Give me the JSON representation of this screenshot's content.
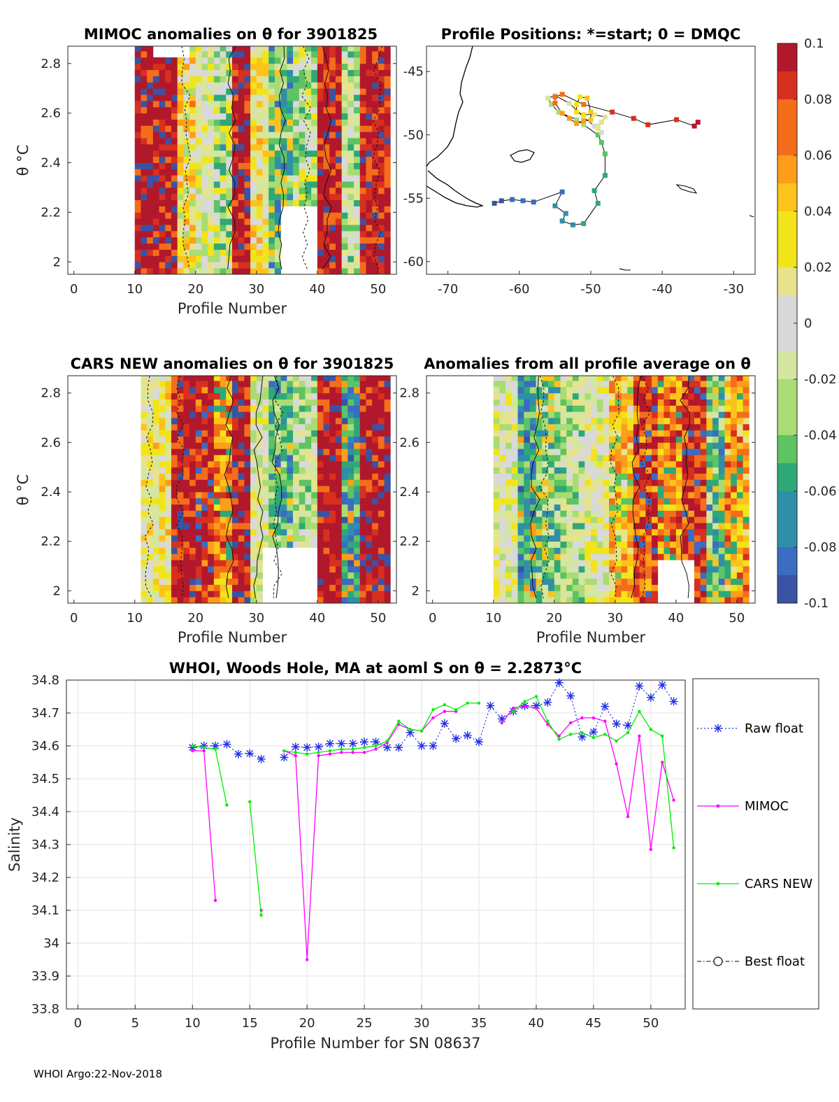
{
  "footer": "WHOI Argo:22-Nov-2018",
  "colorbar": {
    "ticks": [
      "0.1",
      "0.08",
      "0.06",
      "0.04",
      "0.02",
      "0",
      "-0.02",
      "-0.04",
      "-0.06",
      "-0.08",
      "-0.1"
    ],
    "colors": [
      "#b2182b",
      "#d7301f",
      "#f46d1b",
      "#fd9d1a",
      "#fdc31a",
      "#f2e41a",
      "#e6e38c",
      "#d9d9d9",
      "#d4e6a0",
      "#a9dc74",
      "#5dc363",
      "#2fa878",
      "#2f8fa8",
      "#3a6cc2",
      "#3a53a4"
    ]
  },
  "chart_data": [
    {
      "id": "mimoc",
      "type": "heatmap",
      "title": "MIMOC anomalies on θ  for 3901825",
      "xlabel": "Profile Number",
      "ylabel": "θ °C",
      "xlim": [
        -1,
        53
      ],
      "ylim": [
        1.95,
        2.87
      ],
      "xticks": [
        "0",
        "10",
        "20",
        "30",
        "40",
        "50"
      ],
      "yticks": [
        "2.8",
        "2.6",
        "2.4",
        "2.2",
        "2"
      ],
      "profile_range": [
        10,
        52
      ],
      "bands": [
        {
          "from": 10,
          "to": 13,
          "anomaly": 0.1
        },
        {
          "from": 13,
          "to": 17,
          "anomaly": 0.1
        },
        {
          "from": 17,
          "to": 20,
          "anomaly": 0.03
        },
        {
          "from": 20,
          "to": 23,
          "anomaly": 0.0
        },
        {
          "from": 23,
          "to": 26,
          "anomaly": -0.03
        },
        {
          "from": 26,
          "to": 29,
          "anomaly": 0.1
        },
        {
          "from": 29,
          "to": 32,
          "anomaly": 0.02
        },
        {
          "from": 32,
          "to": 36,
          "anomaly": -0.05
        },
        {
          "from": 36,
          "to": 40,
          "anomaly": -0.03
        },
        {
          "from": 40,
          "to": 44,
          "anomaly": 0.1
        },
        {
          "from": 44,
          "to": 47,
          "anomaly": -0.02
        },
        {
          "from": 47,
          "to": 52,
          "anomaly": 0.1
        }
      ]
    },
    {
      "id": "positions",
      "type": "scatter",
      "title": "Profile Positions: *=start; 0 = DMQC",
      "xlim": [
        -73,
        -27
      ],
      "ylim": [
        -61,
        -43
      ],
      "xticks": [
        "-70",
        "-60",
        "-50",
        "-40",
        "-30"
      ],
      "yticks": [
        "-45",
        "-50",
        "-55",
        "-60"
      ],
      "lon": [
        -63.5,
        -62.5,
        -61,
        -59.5,
        -58,
        -54,
        -55,
        -53.5,
        -54,
        -52.5,
        -51,
        -49,
        -49.5,
        -48,
        -48,
        -48.5,
        -49,
        -51,
        -52,
        -54.5,
        -55.5,
        -56,
        -55,
        -53,
        -51,
        -49.5,
        -48.5,
        -49,
        -49,
        -48.5,
        -48,
        -49.5,
        -51,
        -52,
        -52,
        -51.5,
        -50.5,
        -50,
        -50,
        -51,
        -52,
        -53,
        -54,
        -55,
        -55,
        -54,
        -51,
        -47,
        -44,
        -42,
        -38,
        -35.5,
        -35
      ],
      "lat": [
        -55.4,
        -55.2,
        -55.1,
        -55.2,
        -55.3,
        -54.5,
        -55.6,
        -56.2,
        -56.8,
        -57.1,
        -57.0,
        -55.4,
        -54.4,
        -53.2,
        -51.5,
        -50.6,
        -50.0,
        -49.2,
        -48.8,
        -48.2,
        -47.6,
        -47.1,
        -46.9,
        -47.5,
        -48.6,
        -49.3,
        -49.8,
        -49.3,
        -49.5,
        -49.0,
        -48.6,
        -48.4,
        -48.4,
        -48.2,
        -47.6,
        -47.0,
        -47.1,
        -48.2,
        -48.8,
        -48.9,
        -49.1,
        -48.7,
        -48.3,
        -47.5,
        -47.0,
        -46.8,
        -47.6,
        -48.2,
        -48.7,
        -49.2,
        -48.8,
        -49.3,
        -49.0
      ]
    },
    {
      "id": "cars",
      "type": "heatmap",
      "title": "CARS NEW anomalies on θ for 3901825",
      "xlabel": "Profile Number",
      "ylabel": "θ °C",
      "xlim": [
        -1,
        53
      ],
      "ylim": [
        1.95,
        2.87
      ],
      "xticks": [
        "0",
        "10",
        "20",
        "30",
        "40",
        "50"
      ],
      "yticks": [
        "2.8",
        "2.6",
        "2.4",
        "2.2",
        "2"
      ],
      "profile_range": [
        11,
        52
      ],
      "bands": [
        {
          "from": 11,
          "to": 13,
          "anomaly": 0.01
        },
        {
          "from": 13,
          "to": 16,
          "anomaly": 0.02
        },
        {
          "from": 16,
          "to": 20,
          "anomaly": 0.1
        },
        {
          "from": 20,
          "to": 23,
          "anomaly": 0.09
        },
        {
          "from": 23,
          "to": 26,
          "anomaly": 0.06
        },
        {
          "from": 26,
          "to": 29,
          "anomaly": 0.1
        },
        {
          "from": 29,
          "to": 32,
          "anomaly": 0.0
        },
        {
          "from": 32,
          "to": 36,
          "anomaly": -0.05
        },
        {
          "from": 36,
          "to": 40,
          "anomaly": -0.02
        },
        {
          "from": 40,
          "to": 44,
          "anomaly": 0.1
        },
        {
          "from": 44,
          "to": 47,
          "anomaly": -0.06
        },
        {
          "from": 47,
          "to": 52,
          "anomaly": 0.1
        }
      ]
    },
    {
      "id": "avg",
      "type": "heatmap",
      "title": "Anomalies from all profile average on θ",
      "xlabel": "Profile Number",
      "xlim": [
        -1,
        53
      ],
      "ylim": [
        1.95,
        2.87
      ],
      "xticks": [
        "0",
        "10",
        "20",
        "30",
        "40",
        "50"
      ],
      "yticks": [
        "2.8",
        "2.6",
        "2.4",
        "2.2",
        "2"
      ],
      "profile_range": [
        10,
        52
      ],
      "bands": [
        {
          "from": 10,
          "to": 14,
          "anomaly": 0.0
        },
        {
          "from": 14,
          "to": 17,
          "anomaly": -0.06
        },
        {
          "from": 17,
          "to": 21,
          "anomaly": -0.04
        },
        {
          "from": 21,
          "to": 25,
          "anomaly": -0.02
        },
        {
          "from": 25,
          "to": 29,
          "anomaly": 0.0
        },
        {
          "from": 29,
          "to": 33,
          "anomaly": 0.04
        },
        {
          "from": 33,
          "to": 37,
          "anomaly": 0.08
        },
        {
          "from": 37,
          "to": 41,
          "anomaly": 0.06
        },
        {
          "from": 41,
          "to": 45,
          "anomaly": 0.09
        },
        {
          "from": 45,
          "to": 48,
          "anomaly": -0.05
        },
        {
          "from": 48,
          "to": 52,
          "anomaly": 0.05
        }
      ]
    },
    {
      "id": "salinity",
      "type": "line",
      "title": "WHOI, Woods Hole, MA at aoml S on θ = 2.2873°C",
      "xlabel": "Profile Number for SN 08637",
      "ylabel": "Salinity",
      "xlim": [
        -1,
        53
      ],
      "ylim": [
        33.8,
        34.8
      ],
      "xticks": [
        "0",
        "5",
        "10",
        "15",
        "20",
        "25",
        "30",
        "35",
        "40",
        "45",
        "50"
      ],
      "yticks": [
        "34.8",
        "34.7",
        "34.6",
        "34.5",
        "34.4",
        "34.3",
        "34.2",
        "34.1",
        "34",
        "33.9",
        "33.8"
      ],
      "x": [
        10,
        11,
        12,
        13,
        14,
        15,
        16,
        17,
        18,
        19,
        20,
        21,
        22,
        23,
        24,
        25,
        26,
        27,
        28,
        29,
        30,
        31,
        32,
        33,
        34,
        35,
        36,
        37,
        38,
        39,
        40,
        41,
        42,
        43,
        44,
        45,
        46,
        47,
        48,
        49,
        50,
        51,
        52
      ],
      "series": [
        {
          "name": "Raw float",
          "color": "#1f2ee6",
          "style": "dotted-star",
          "values": [
            34.595,
            34.6,
            34.6,
            34.605,
            34.575,
            34.577,
            34.56,
            null,
            34.565,
            34.597,
            34.595,
            34.597,
            34.607,
            34.607,
            34.607,
            34.612,
            34.612,
            34.595,
            34.595,
            34.64,
            34.6,
            34.6,
            34.668,
            34.622,
            34.632,
            34.612,
            34.722,
            34.682,
            34.705,
            34.722,
            34.722,
            34.732,
            34.792,
            34.752,
            34.627,
            34.642,
            34.72,
            34.667,
            34.662,
            34.782,
            34.747,
            34.785,
            34.735
          ]
        },
        {
          "name": "MIMOC",
          "color": "#ff00ff",
          "style": "solid-dot",
          "values": [
            34.585,
            34.585,
            34.13,
            null,
            null,
            null,
            34.1,
            null,
            34.585,
            34.57,
            33.95,
            34.57,
            34.575,
            34.58,
            34.58,
            34.58,
            34.59,
            34.61,
            34.665,
            34.65,
            34.645,
            34.685,
            34.705,
            34.705,
            null,
            null,
            null,
            34.67,
            34.715,
            34.72,
            34.715,
            34.665,
            34.63,
            34.67,
            34.685,
            34.685,
            34.675,
            34.545,
            34.385,
            34.63,
            34.285,
            34.55,
            34.435
          ]
        },
        {
          "name": "CARS NEW",
          "color": "#00ee00",
          "style": "solid-dot",
          "values": [
            34.6,
            34.595,
            34.59,
            34.42,
            null,
            34.43,
            34.085,
            null,
            34.585,
            34.58,
            34.575,
            34.58,
            34.585,
            34.59,
            34.59,
            34.595,
            34.6,
            34.615,
            34.675,
            34.65,
            34.645,
            34.71,
            34.725,
            34.71,
            34.73,
            34.73,
            null,
            null,
            34.705,
            34.735,
            34.75,
            34.675,
            34.62,
            34.635,
            34.64,
            34.625,
            34.635,
            34.615,
            34.64,
            34.705,
            34.65,
            34.63,
            34.29
          ]
        }
      ],
      "legend": [
        "Raw float",
        "MIMOC",
        "CARS NEW",
        "Best float"
      ]
    }
  ]
}
